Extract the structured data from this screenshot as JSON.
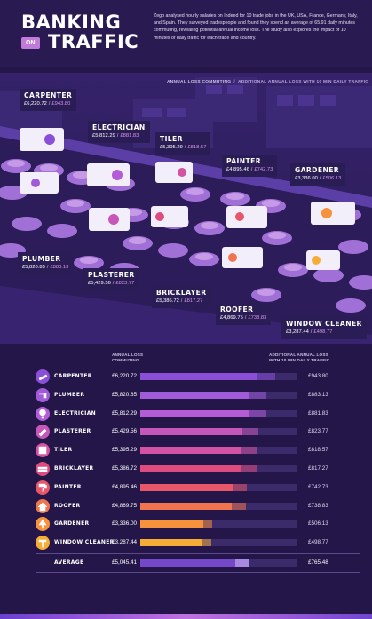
{
  "header": {
    "title_line1": "BANKING",
    "title_on": "ON",
    "title_line2": "TRAFFIC",
    "intro": "Zego analysed hourly salaries on Indeed for 10 trade jobs in the UK, USA, France, Germany, Italy, and Spain. They surveyed tradespeople and found they spend an average of 65.91 daily minutes commuting, revealing potential annual income loss. The study also explores the impact of 10 minutes of daily traffic for each trade and country."
  },
  "scene_legend": {
    "loss_label": "ANNUAL LOSS COMMUTING",
    "separator": "/",
    "extra_label": "ADDITIONAL ANNUAL LOSS WITH 10 MIN DAILY TRAFFIC"
  },
  "callouts": [
    {
      "name": "CARPENTER",
      "loss": "£6,220.72",
      "sep": "/",
      "extra": "£943.80"
    },
    {
      "name": "ELECTRICIAN",
      "loss": "£5,812.29",
      "sep": "/",
      "extra": "£881.83"
    },
    {
      "name": "TILER",
      "loss": "£5,395.29",
      "sep": "/",
      "extra": "£818.57"
    },
    {
      "name": "PAINTER",
      "loss": "£4,895.46",
      "sep": "/",
      "extra": "£742.73"
    },
    {
      "name": "GARDENER",
      "loss": "£3,336.00",
      "sep": "/",
      "extra": "£506.13"
    },
    {
      "name": "PLUMBER",
      "loss": "£5,820.85",
      "sep": "/",
      "extra": "£883.13"
    },
    {
      "name": "PLASTERER",
      "loss": "£5,429.56",
      "sep": "/",
      "extra": "£823.77"
    },
    {
      "name": "BRICKLAYER",
      "loss": "£5,386.72",
      "sep": "/",
      "extra": "£817.27"
    },
    {
      "name": "ROOFER",
      "loss": "£4,869.75",
      "sep": "/",
      "extra": "£738.83"
    },
    {
      "name": "WINDOW CLEANER",
      "loss": "£3,287.44",
      "sep": "/",
      "extra": "£498.77"
    }
  ],
  "table": {
    "col_loss_header_1": "ANNUAL LOSS",
    "col_loss_header_2": "COMMUTING",
    "col_extra_header_1": "ADDITIONAL ANNUAL LOSS",
    "col_extra_header_2": "WITH 10 MIN DAILY TRAFFIC",
    "average_label": "AVERAGE",
    "average_loss_text": "£5,045.41",
    "average_extra_text": "£765.48"
  },
  "chart_data": {
    "type": "bar",
    "orientation": "horizontal",
    "stacked": true,
    "categories": [
      "CARPENTER",
      "PLUMBER",
      "ELECTRICIAN",
      "PLASTERER",
      "TILER",
      "BRICKLAYER",
      "PAINTER",
      "ROOFER",
      "GARDENER",
      "WINDOW CLEANER"
    ],
    "series": [
      {
        "name": "ANNUAL LOSS COMMUTING",
        "values": [
          6220.72,
          5820.85,
          5812.29,
          5429.56,
          5395.29,
          5386.72,
          4895.46,
          4869.75,
          3336.0,
          3287.44
        ]
      },
      {
        "name": "ADDITIONAL ANNUAL LOSS WITH 10 MIN DAILY TRAFFIC",
        "values": [
          943.8,
          883.13,
          881.83,
          823.77,
          818.57,
          817.27,
          742.73,
          738.83,
          506.13,
          498.77
        ]
      }
    ],
    "labels_loss": [
      "£6,220.72",
      "£5,820.85",
      "£5,812.29",
      "£5,429.56",
      "£5,395.29",
      "£5,386.72",
      "£4,895.46",
      "£4,869.75",
      "£3,336.00",
      "£3,287.44"
    ],
    "labels_extra": [
      "£943.80",
      "£883.13",
      "£881.83",
      "£823.77",
      "£818.57",
      "£817.27",
      "£742.73",
      "£738.83",
      "£506.13",
      "£498.77"
    ],
    "average": {
      "loss": 5045.41,
      "extra": 765.48
    },
    "xlim": [
      0,
      8300
    ],
    "colors": [
      "#8a4fd6",
      "#a25bd8",
      "#b45bd6",
      "#c657b8",
      "#d452a3",
      "#de4c7f",
      "#e8566a",
      "#f0744e",
      "#f5923b",
      "#f6ad36"
    ],
    "average_color": "#7448c8",
    "icons": [
      "saw-icon",
      "pipe-icon",
      "lightbulb-icon",
      "trowel-icon",
      "tile-icon",
      "brick-icon",
      "paint-roller-icon",
      "roof-icon",
      "tree-icon",
      "squeegee-icon"
    ]
  }
}
